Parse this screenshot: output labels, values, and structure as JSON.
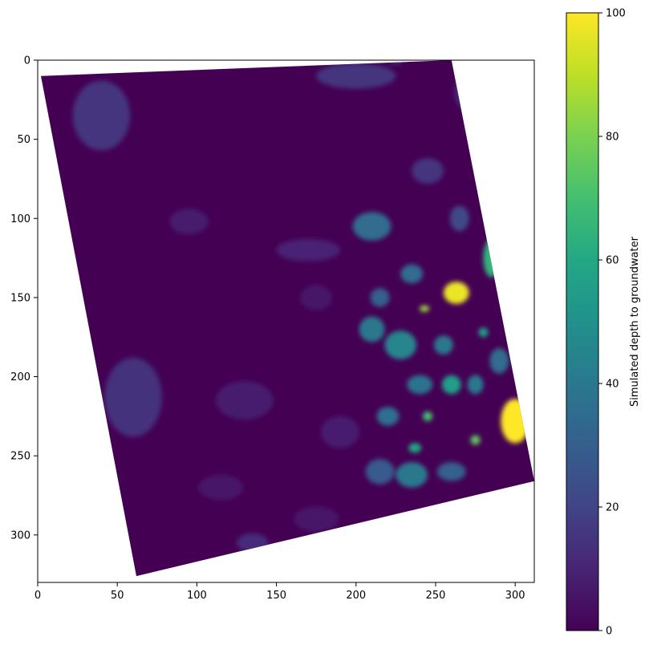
{
  "chart_data": {
    "type": "heatmap",
    "title": "",
    "xlabel": "",
    "ylabel": "",
    "xlim": [
      0,
      312
    ],
    "ylim": [
      330,
      0
    ],
    "x_ticks": [
      0,
      50,
      100,
      150,
      200,
      250,
      300
    ],
    "y_ticks": [
      0,
      50,
      100,
      150,
      200,
      250,
      300
    ],
    "colorbar": {
      "label": "Simulated depth to groundwater",
      "range": [
        0,
        100
      ],
      "ticks": [
        0,
        20,
        40,
        60,
        80,
        100
      ],
      "colormap": "viridis"
    },
    "data_extent_corners": [
      [
        2,
        10
      ],
      [
        260,
        0
      ],
      [
        312,
        266
      ],
      [
        62,
        326
      ]
    ],
    "background_value": 0,
    "hotspots": [
      {
        "x": 300,
        "y": 228,
        "value": 100,
        "rx": 9,
        "ry": 14
      },
      {
        "x": 263,
        "y": 147,
        "value": 97,
        "rx": 8,
        "ry": 7
      },
      {
        "x": 285,
        "y": 125,
        "value": 65,
        "rx": 5,
        "ry": 12
      },
      {
        "x": 243,
        "y": 157,
        "value": 85,
        "rx": 3,
        "ry": 2
      },
      {
        "x": 275,
        "y": 240,
        "value": 75,
        "rx": 3,
        "ry": 3
      },
      {
        "x": 245,
        "y": 225,
        "value": 70,
        "rx": 3,
        "ry": 3
      },
      {
        "x": 237,
        "y": 245,
        "value": 60,
        "rx": 4,
        "ry": 3
      },
      {
        "x": 260,
        "y": 205,
        "value": 55,
        "rx": 6,
        "ry": 6
      },
      {
        "x": 280,
        "y": 172,
        "value": 55,
        "rx": 3,
        "ry": 3
      },
      {
        "x": 228,
        "y": 180,
        "value": 45,
        "rx": 10,
        "ry": 9
      },
      {
        "x": 235,
        "y": 262,
        "value": 40,
        "rx": 10,
        "ry": 8
      },
      {
        "x": 210,
        "y": 170,
        "value": 40,
        "rx": 8,
        "ry": 8
      },
      {
        "x": 255,
        "y": 180,
        "value": 40,
        "rx": 6,
        "ry": 6
      },
      {
        "x": 240,
        "y": 205,
        "value": 38,
        "rx": 8,
        "ry": 6
      },
      {
        "x": 220,
        "y": 225,
        "value": 36,
        "rx": 7,
        "ry": 6
      },
      {
        "x": 275,
        "y": 205,
        "value": 40,
        "rx": 5,
        "ry": 6
      },
      {
        "x": 290,
        "y": 190,
        "value": 35,
        "rx": 6,
        "ry": 8
      },
      {
        "x": 260,
        "y": 260,
        "value": 30,
        "rx": 9,
        "ry": 6
      },
      {
        "x": 215,
        "y": 260,
        "value": 28,
        "rx": 9,
        "ry": 8
      },
      {
        "x": 235,
        "y": 135,
        "value": 35,
        "rx": 7,
        "ry": 6
      },
      {
        "x": 215,
        "y": 150,
        "value": 30,
        "rx": 6,
        "ry": 6
      },
      {
        "x": 210,
        "y": 105,
        "value": 35,
        "rx": 12,
        "ry": 9
      },
      {
        "x": 265,
        "y": 100,
        "value": 22,
        "rx": 6,
        "ry": 8
      },
      {
        "x": 245,
        "y": 70,
        "value": 15,
        "rx": 10,
        "ry": 8
      },
      {
        "x": 270,
        "y": 20,
        "value": 12,
        "rx": 8,
        "ry": 12
      },
      {
        "x": 200,
        "y": 10,
        "value": 15,
        "rx": 25,
        "ry": 8
      },
      {
        "x": 225,
        "y": 1,
        "value": 25,
        "rx": 4,
        "ry": 1
      },
      {
        "x": 40,
        "y": 35,
        "value": 15,
        "rx": 18,
        "ry": 22
      },
      {
        "x": 170,
        "y": 120,
        "value": 10,
        "rx": 20,
        "ry": 7
      },
      {
        "x": 95,
        "y": 102,
        "value": 8,
        "rx": 12,
        "ry": 8
      },
      {
        "x": 175,
        "y": 150,
        "value": 6,
        "rx": 10,
        "ry": 8
      },
      {
        "x": 60,
        "y": 213,
        "value": 14,
        "rx": 18,
        "ry": 25
      },
      {
        "x": 130,
        "y": 215,
        "value": 8,
        "rx": 18,
        "ry": 12
      },
      {
        "x": 135,
        "y": 305,
        "value": 12,
        "rx": 10,
        "ry": 6
      },
      {
        "x": 115,
        "y": 270,
        "value": 6,
        "rx": 14,
        "ry": 8
      },
      {
        "x": 190,
        "y": 235,
        "value": 8,
        "rx": 12,
        "ry": 10
      },
      {
        "x": 175,
        "y": 290,
        "value": 6,
        "rx": 14,
        "ry": 8
      }
    ]
  }
}
